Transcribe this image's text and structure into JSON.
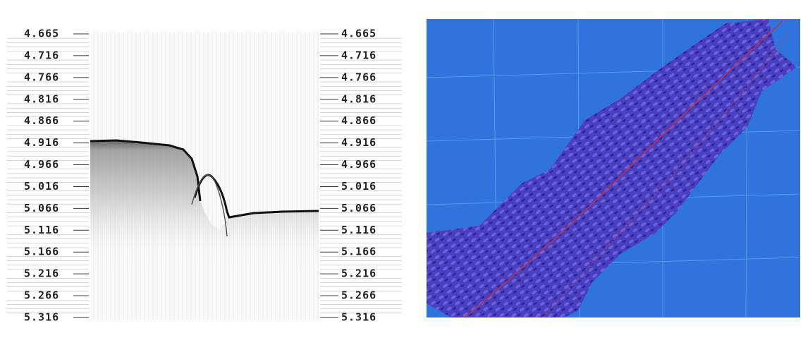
{
  "profile": {
    "depth_labels": [
      "4.665",
      "4.716",
      "4.766",
      "4.816",
      "4.866",
      "4.916",
      "4.966",
      "5.016",
      "5.066",
      "5.116",
      "5.166",
      "5.216",
      "5.266",
      "5.316"
    ]
  }
}
